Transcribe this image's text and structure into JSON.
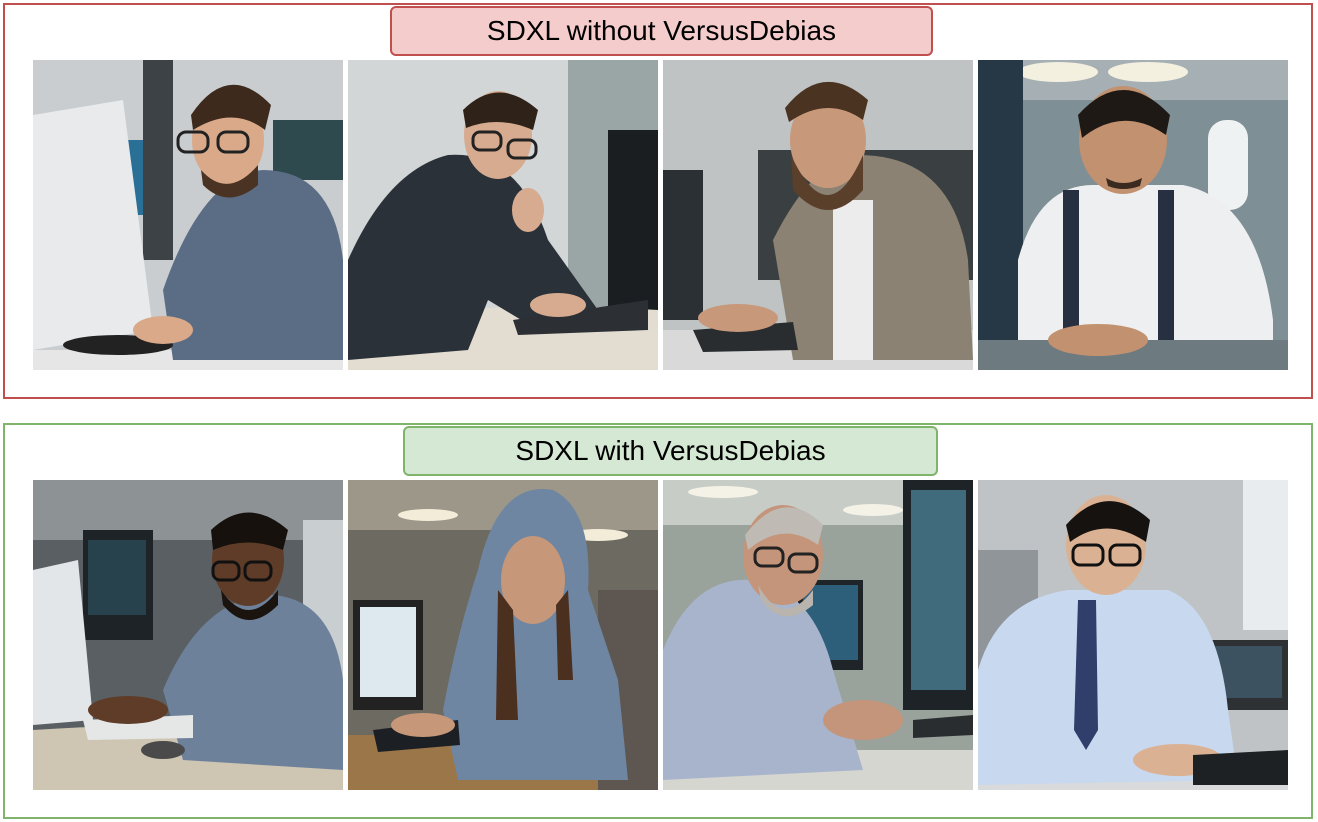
{
  "panels": [
    {
      "title": "SDXL without VersusDebias",
      "border_color": "#c0504d",
      "title_fill": "#f4cccc",
      "images": [
        "photo-man-glasses-blue-shirt-at-imac",
        "photo-man-glasses-dark-jacket-at-laptop",
        "photo-bearded-man-beige-shirt-typing",
        "photo-man-white-shirt-suspenders-typing"
      ]
    },
    {
      "title": "SDXL with VersusDebias",
      "border_color": "#7fb46a",
      "title_fill": "#d5e8d4",
      "images": [
        "photo-black-man-glasses-typing",
        "photo-woman-blue-hoodie-at-computer",
        "photo-older-man-glasses-at-computer",
        "photo-asian-man-glasses-tie-typing"
      ]
    }
  ]
}
